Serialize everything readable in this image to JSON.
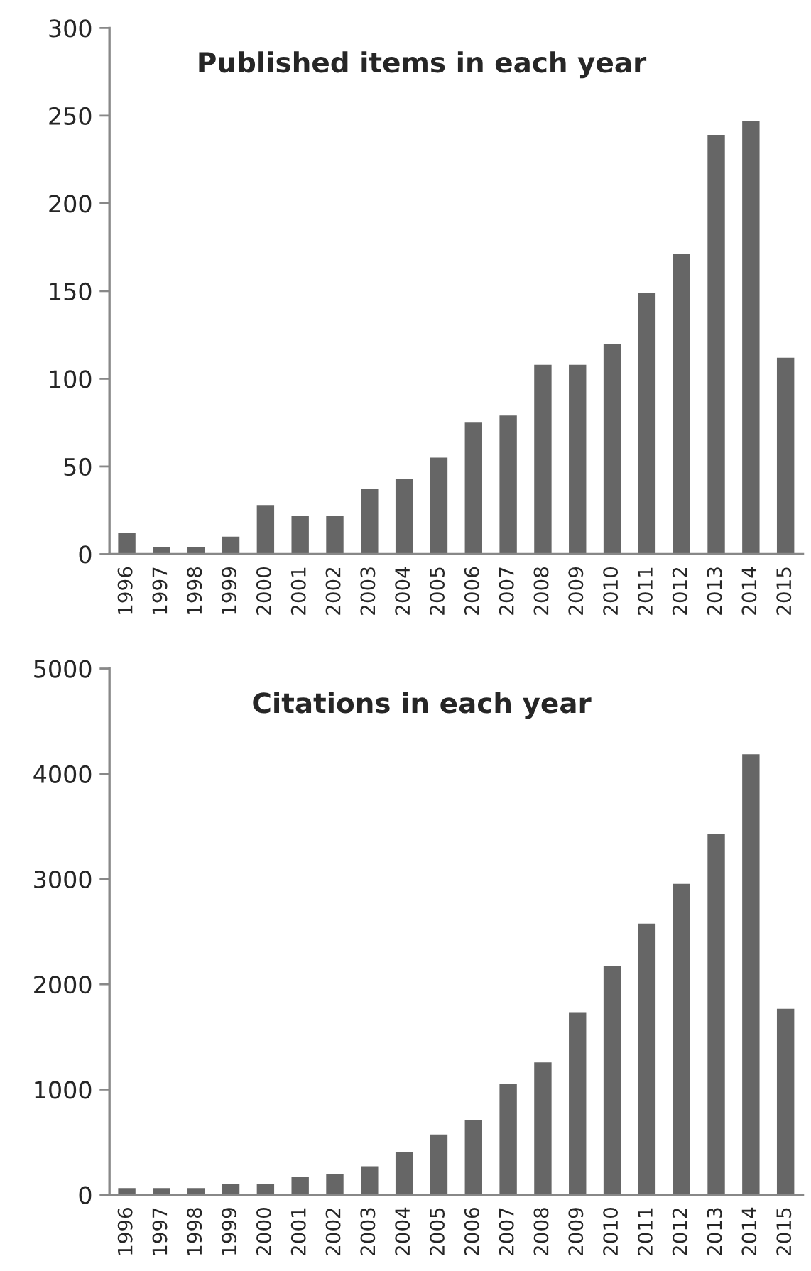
{
  "chart_data": [
    {
      "type": "bar",
      "title": "Published items in each year",
      "categories": [
        "1996",
        "1997",
        "1998",
        "1999",
        "2000",
        "2001",
        "2002",
        "2003",
        "2004",
        "2005",
        "2006",
        "2007",
        "2008",
        "2009",
        "2010",
        "2011",
        "2012",
        "2013",
        "2014",
        "2015"
      ],
      "values": [
        12,
        4,
        4,
        10,
        28,
        22,
        22,
        37,
        43,
        55,
        75,
        79,
        108,
        108,
        120,
        149,
        171,
        239,
        247,
        112
      ],
      "color": "#666666",
      "ylim": [
        0,
        300
      ],
      "yticks": [
        0,
        50,
        100,
        150,
        200,
        250,
        300
      ],
      "grid": false
    },
    {
      "type": "bar",
      "title": "Citations in each year",
      "categories": [
        "1996",
        "1997",
        "1998",
        "1999",
        "2000",
        "2001",
        "2002",
        "2003",
        "2004",
        "2005",
        "2006",
        "2007",
        "2008",
        "2009",
        "2010",
        "2011",
        "2012",
        "2013",
        "2014",
        "2015"
      ],
      "values": [
        63,
        63,
        63,
        99,
        99,
        167,
        198,
        270,
        405,
        572,
        707,
        1054,
        1257,
        1734,
        2171,
        2577,
        2955,
        3432,
        4185,
        1766
      ],
      "color": "#666666",
      "ylim": [
        0,
        5000
      ],
      "yticks": [
        0,
        1000,
        2000,
        3000,
        4000,
        5000
      ],
      "grid": false
    }
  ]
}
